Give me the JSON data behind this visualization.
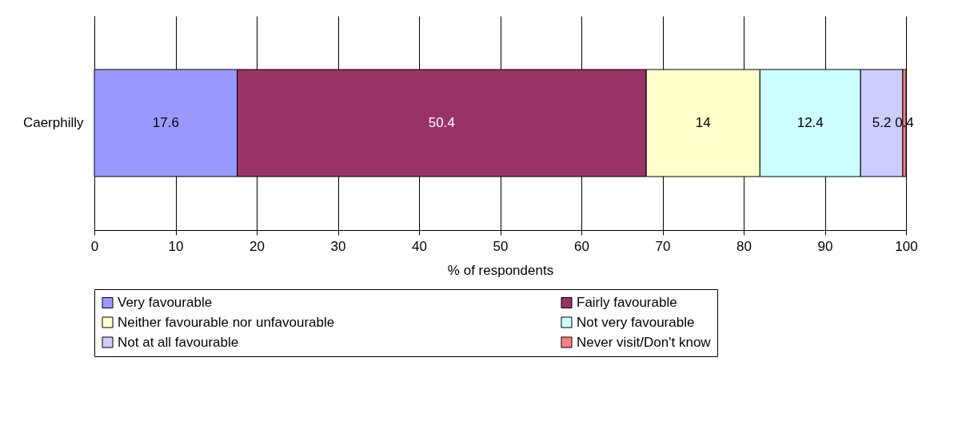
{
  "chart_data": {
    "type": "bar",
    "orientation": "horizontal",
    "stacked": true,
    "xlabel": "% of respondents",
    "categories": [
      "Caerphilly"
    ],
    "series": [
      {
        "name": "Very favourable",
        "color": "#9999ff",
        "values": [
          17.6
        ]
      },
      {
        "name": "Fairly favourable",
        "color": "#993366",
        "values": [
          50.4
        ]
      },
      {
        "name": "Neither favourable nor unfavourable",
        "color": "#ffffcc",
        "values": [
          14
        ]
      },
      {
        "name": "Not very favourable",
        "color": "#ccffff",
        "values": [
          12.4
        ]
      },
      {
        "name": "Not at all favourable",
        "color": "#ccccff",
        "values": [
          5.2
        ]
      },
      {
        "name": "Never visit/Don't know",
        "color": "#ff8080",
        "values": [
          0.4
        ]
      }
    ],
    "xlim": [
      0,
      100
    ],
    "xticks": [
      0,
      10,
      20,
      30,
      40,
      50,
      60,
      70,
      80,
      90,
      100
    ],
    "grid": "x",
    "data_labels": true,
    "legend": "bottom"
  }
}
